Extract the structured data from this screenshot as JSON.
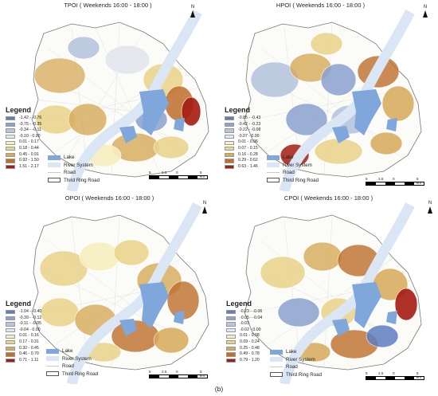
{
  "caption": "(b)",
  "panels": [
    {
      "title": "TPOI ( Weekends 16:00 - 18:00 )",
      "north": "N",
      "legend_title": "Legend",
      "classes": [
        {
          "label": "-1.42 - -0.76",
          "color": "#5f7fc2"
        },
        {
          "label": "-0.75 - -0.35",
          "color": "#8ba2d0"
        },
        {
          "label": "-0.34 - -0.11",
          "color": "#b7c5de"
        },
        {
          "label": "-0.10 - 0.00",
          "color": "#e3e7ef"
        },
        {
          "label": "0.01 - 0.17",
          "color": "#f7efbf"
        },
        {
          "label": "0.18 - 0.44",
          "color": "#ead48a"
        },
        {
          "label": "0.45 - 0.91",
          "color": "#d7aa5a"
        },
        {
          "label": "0.92 - 1.50",
          "color": "#bf6f2c"
        },
        {
          "label": "1.51 - 2.17",
          "color": "#a51c12"
        }
      ],
      "layers": [
        {
          "label": "Lake",
          "color": "#7fa7dc",
          "kind": "fill"
        },
        {
          "label": "River System",
          "color": "#dbe6f5",
          "kind": "fill"
        },
        {
          "label": "Road",
          "color": "#c9c9c9",
          "kind": "line"
        },
        {
          "label": "Third Ring Road",
          "color": "#ffffff",
          "kind": "box"
        }
      ],
      "scale": [
        "5",
        "2.5",
        "0",
        "5 km"
      ]
    },
    {
      "title": "HPOI ( Weekends 16:00 - 18:00 )",
      "north": "N",
      "legend_title": "Legend",
      "classes": [
        {
          "label": "-0.85 - -0.43",
          "color": "#5f7fc2"
        },
        {
          "label": "-0.42 - -0.23",
          "color": "#8ba2d0"
        },
        {
          "label": "-0.22 - -0.08",
          "color": "#b7c5de"
        },
        {
          "label": "-0.07 - 0.00",
          "color": "#e3e7ef"
        },
        {
          "label": "0.01 - 0.06",
          "color": "#f7efbf"
        },
        {
          "label": "0.07 - 0.15",
          "color": "#ead48a"
        },
        {
          "label": "0.16 - 0.28",
          "color": "#d7aa5a"
        },
        {
          "label": "0.29 - 0.62",
          "color": "#bf6f2c"
        },
        {
          "label": "0.63 - 1.46",
          "color": "#a51c12"
        }
      ],
      "layers": [
        {
          "label": "Lake",
          "color": "#7fa7dc",
          "kind": "fill"
        },
        {
          "label": "River System",
          "color": "#dbe6f5",
          "kind": "fill"
        },
        {
          "label": "Road",
          "color": "#c9c9c9",
          "kind": "line"
        },
        {
          "label": "Third Ring Road",
          "color": "#ffffff",
          "kind": "box"
        }
      ],
      "scale": [
        "5",
        "2.5",
        "0",
        "5 km"
      ]
    },
    {
      "title": "OPOI ( Weekends 16:00 - 18:00 )",
      "north": "N",
      "legend_title": "Legend",
      "classes": [
        {
          "label": "-1.04 - -0.40",
          "color": "#5f7fc2"
        },
        {
          "label": "-0.39 - -0.12",
          "color": "#8ba2d0"
        },
        {
          "label": "-0.11 - -0.05",
          "color": "#b7c5de"
        },
        {
          "label": "-0.04 - 0.00",
          "color": "#e3e7ef"
        },
        {
          "label": "0.01 - 0.16",
          "color": "#f7efbf"
        },
        {
          "label": "0.17 - 0.31",
          "color": "#ead48a"
        },
        {
          "label": "0.32 - 0.45",
          "color": "#d7aa5a"
        },
        {
          "label": "0.46 - 0.70",
          "color": "#bf6f2c"
        },
        {
          "label": "0.71 - 1.11",
          "color": "#a51c12"
        }
      ],
      "layers": [
        {
          "label": "Lake",
          "color": "#7fa7dc",
          "kind": "fill"
        },
        {
          "label": "River System",
          "color": "#dbe6f5",
          "kind": "fill"
        },
        {
          "label": "Road",
          "color": "#c9c9c9",
          "kind": "line"
        },
        {
          "label": "Third Ring Road",
          "color": "#ffffff",
          "kind": "box"
        }
      ],
      "scale": [
        "5",
        "2.5",
        "0",
        "5 km"
      ]
    },
    {
      "title": "CPOI ( Weekends 16:00 - 18:00 )",
      "north": "N",
      "legend_title": "Legend",
      "classes": [
        {
          "label": "-0.23 - -0.06",
          "color": "#5f7fc2"
        },
        {
          "label": "-0.05 - -0.04",
          "color": "#8ba2d0"
        },
        {
          "label": "-0.03",
          "color": "#b7c5de"
        },
        {
          "label": "-0.02 - 0.00",
          "color": "#e3e7ef"
        },
        {
          "label": "0.01 - 0.08",
          "color": "#f7efbf"
        },
        {
          "label": "0.09 - 0.24",
          "color": "#ead48a"
        },
        {
          "label": "0.25 - 0.48",
          "color": "#d7aa5a"
        },
        {
          "label": "0.49 - 0.78",
          "color": "#bf6f2c"
        },
        {
          "label": "0.79 - 1.20",
          "color": "#a51c12"
        }
      ],
      "layers": [
        {
          "label": "Lake",
          "color": "#7fa7dc",
          "kind": "fill"
        },
        {
          "label": "River System",
          "color": "#dbe6f5",
          "kind": "fill"
        },
        {
          "label": "Road",
          "color": "#c9c9c9",
          "kind": "line"
        },
        {
          "label": "Third Ring Road",
          "color": "#ffffff",
          "kind": "box"
        }
      ],
      "scale": [
        "5",
        "2.5",
        "0",
        "5 km"
      ]
    }
  ]
}
